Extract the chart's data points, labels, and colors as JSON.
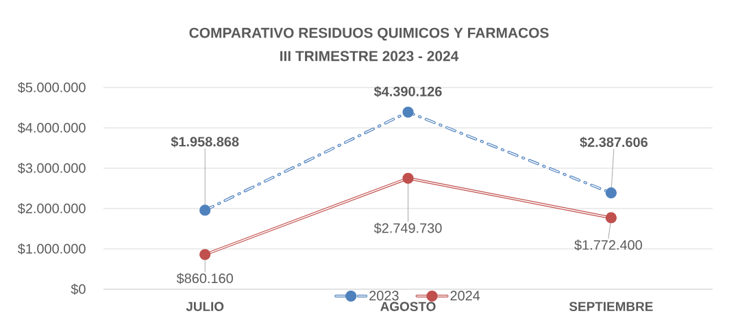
{
  "chart_data": {
    "type": "line",
    "title": "COMPARATIVO RESIDUOS QUIMICOS Y FARMACOS",
    "subtitle": "III TRIMESTRE 2023 - 2024",
    "categories": [
      "JULIO",
      "AGOSTO",
      "SEPTIEMBRE"
    ],
    "series": [
      {
        "name": "2023",
        "color": "#4f81bd",
        "values": [
          1958868,
          4390126,
          2387606
        ],
        "value_labels": [
          "$1.958.868",
          "$4.390.126",
          "$2.387.606"
        ],
        "line_style": "dashed"
      },
      {
        "name": "2024",
        "color": "#c0504d",
        "values": [
          860160,
          2749730,
          1772400
        ],
        "value_labels": [
          "$860.160",
          "$2.749.730",
          "$1.772.400"
        ],
        "line_style": "solid"
      }
    ],
    "ylim": [
      0,
      5000000
    ],
    "yticks": [
      {
        "value": 0,
        "label": "$0"
      },
      {
        "value": 1000000,
        "label": "$1.000.000"
      },
      {
        "value": 2000000,
        "label": "$2.000.000"
      },
      {
        "value": 3000000,
        "label": "$3.000.000"
      },
      {
        "value": 4000000,
        "label": "$4.000.000"
      },
      {
        "value": 5000000,
        "label": "$5.000.000"
      }
    ],
    "grid": "y",
    "legend": "bottom",
    "marker": "circle"
  }
}
